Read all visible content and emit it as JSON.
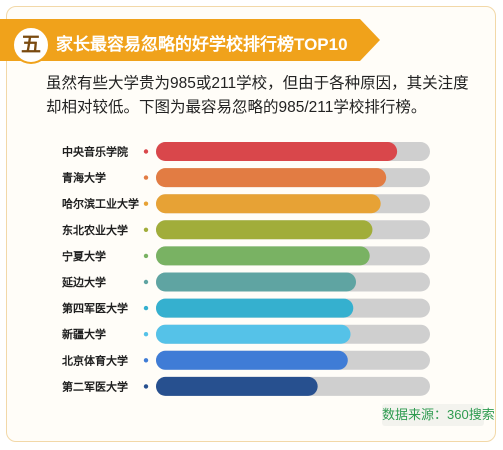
{
  "header": {
    "number": "五",
    "title": "家长最容易忽略的好学校排行榜TOP10",
    "banner_color": "#f0a21b"
  },
  "description": "虽然有些大学贵为985或211学校，但由于各种原因，其关注度却相对较低。下图为最容易忽略的985/211学校排行榜。",
  "source": "数据来源：360搜索",
  "chart_data": {
    "type": "bar",
    "orientation": "horizontal",
    "categories": [
      "中央音乐学院",
      "青海大学",
      "哈尔滨工业大学",
      "东北农业大学",
      "宁夏大学",
      "延边大学",
      "第四军医大学",
      "新疆大学",
      "北京体育大学",
      "第二军医大学"
    ],
    "values": [
      0.88,
      0.84,
      0.82,
      0.79,
      0.78,
      0.73,
      0.72,
      0.71,
      0.7,
      0.59
    ],
    "max": 1,
    "colors": [
      "#d9474b",
      "#e27c43",
      "#e7a235",
      "#a1ad3a",
      "#79b263",
      "#5fa4a2",
      "#35b0cf",
      "#55c2e8",
      "#3f7cd6",
      "#27508f"
    ],
    "track_color": "#cfcfcf",
    "title": "",
    "xlabel": "",
    "ylabel": "",
    "grid": false,
    "legend": "none"
  }
}
